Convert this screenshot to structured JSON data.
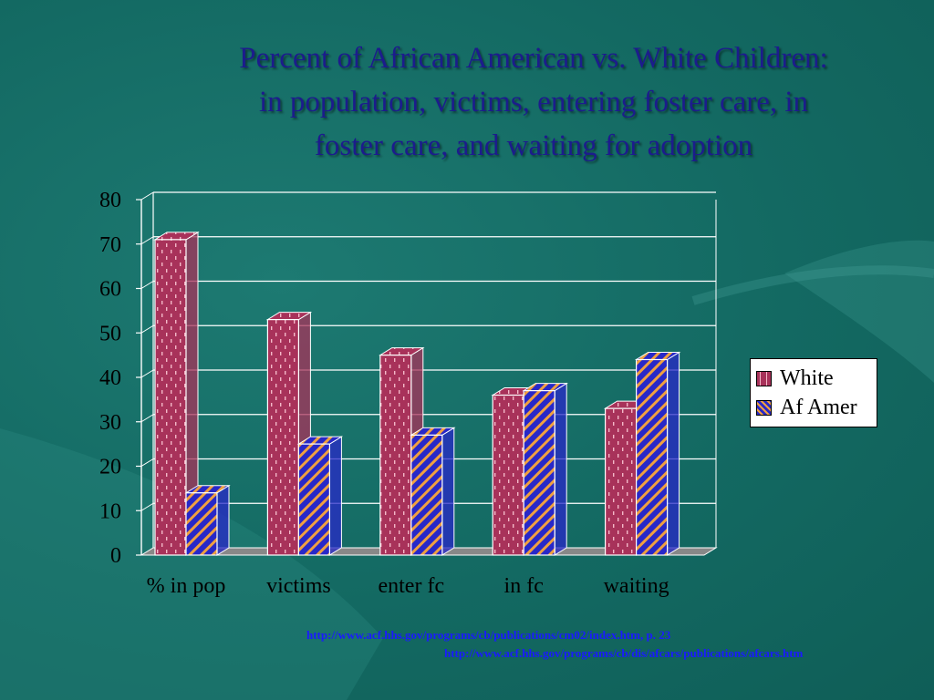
{
  "title": {
    "line1": "Percent of African American vs. White Children:",
    "line2": "in population, victims, entering foster care, in",
    "line3": "foster care, and waiting for adoption"
  },
  "sources": [
    "http://www.acf.hhs.gov/programs/cb/publications/cm02/index.htm, p. 23",
    "http://www.acf.hhs.gov/programs/cb/dis/afcars/publications/afcars.htm"
  ],
  "colors": {
    "white_series": "#a8325a",
    "af_amer_series": "#2828c8",
    "stripe_accent": "#f0a040",
    "title": "#1c1c8c",
    "source_link": "#1a1aff"
  },
  "chart_data": {
    "type": "bar",
    "categories": [
      "% in pop",
      "victims",
      "enter fc",
      "in fc",
      "waiting"
    ],
    "series": [
      {
        "name": "White",
        "values": [
          71,
          53,
          45,
          36,
          33
        ]
      },
      {
        "name": "Af Amer",
        "values": [
          14,
          25,
          27,
          37,
          44
        ]
      }
    ],
    "title": "Percent of African American vs. White Children: in population, victims, entering foster care, in foster care, and waiting for adoption",
    "xlabel": "",
    "ylabel": "",
    "ylim": [
      0,
      80
    ],
    "yticks": [
      0,
      10,
      20,
      30,
      40,
      50,
      60,
      70,
      80
    ],
    "grid": true,
    "legend": "right",
    "style": "3d-clustered-column"
  }
}
